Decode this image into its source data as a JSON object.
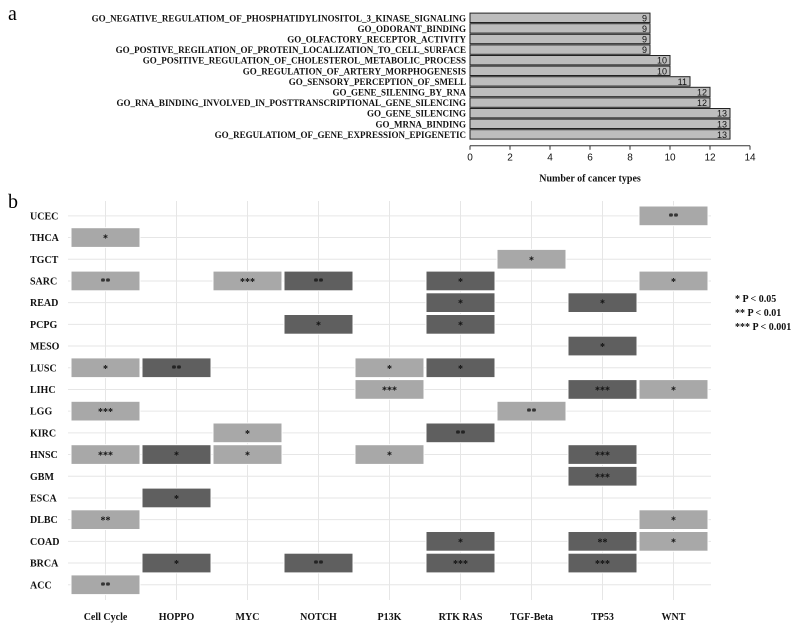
{
  "panel_a_label": "a",
  "panel_b_label": "b",
  "chart_data": [
    {
      "type": "bar",
      "orientation": "horizontal",
      "panel": "a",
      "categories": [
        "GO_NEGATIVE_REGULATIOM_OF_PHOSPHATIDYLINOSITOL_3_KINASE_SIGNALING",
        "GO_ODORANT_BINDING",
        "GO_OLFACTORY_RECEPTOR_ACTIVITY",
        "GO_POSTIVE_REGILATION_OF_PROTEIN_LOCALIZATION_TO_CELL_SURFACE",
        "GO_POSITIVE_REGULATION_OF_CHOLESTEROL_METABOLIC_PROCESS",
        "GO_REGULATION_OF_ARTERY_MORPHOGENESIS",
        "GO_SENSORY_PERCEPTION_OF_SMELL",
        "GO_GENE_SILENING_BY_RNA",
        "GO_RNA_BINDING_INVOLVED_IN_POSTTRANSCRIPTIONAL_GENE_SILENCING",
        "GO_GENE_SILENCING",
        "GO_MRNA_BINDING",
        "GO_REGULATIOM_OF_GENE_EXPRESSION_EPIGENETIC"
      ],
      "values": [
        9,
        9,
        9,
        9,
        10,
        10,
        11,
        12,
        12,
        13,
        13,
        13
      ],
      "value_labels": [
        "9",
        "9",
        "9",
        "9",
        "10",
        "10",
        "11",
        "12",
        "12",
        "13",
        "13",
        "13"
      ],
      "xlabel": "Number of cancer types",
      "xlim": [
        0,
        14
      ],
      "xticks": [
        "0",
        "2",
        "4",
        "6",
        "8",
        "10",
        "12",
        "14"
      ],
      "bar_color": "#bdbdbd"
    },
    {
      "type": "heatmap",
      "panel": "b",
      "columns": [
        "Cell Cycle",
        "HOPPO",
        "MYC",
        "NOTCH",
        "P13K",
        "RTK RAS",
        "TGF-Beta",
        "TP53",
        "WNT"
      ],
      "rows": [
        "UCEC",
        "THCA",
        "TGCT",
        "SARC",
        "READ",
        "PCPG",
        "MESO",
        "LUSC",
        "LIHC",
        "LGG",
        "KIRC",
        "HNSC",
        "GBM",
        "ESCA",
        "DLBC",
        "COAD",
        "BRCA",
        "ACC"
      ],
      "cells": [
        {
          "row": "UCEC",
          "col": "WNT",
          "sig": "**",
          "shade": "light"
        },
        {
          "row": "THCA",
          "col": "Cell Cycle",
          "sig": "*",
          "shade": "light"
        },
        {
          "row": "TGCT",
          "col": "TGF-Beta",
          "sig": "*",
          "shade": "light"
        },
        {
          "row": "SARC",
          "col": "Cell Cycle",
          "sig": "**",
          "shade": "light"
        },
        {
          "row": "SARC",
          "col": "MYC",
          "sig": "***",
          "shade": "light"
        },
        {
          "row": "SARC",
          "col": "NOTCH",
          "sig": "**",
          "shade": "dark"
        },
        {
          "row": "SARC",
          "col": "RTK RAS",
          "sig": "*",
          "shade": "dark"
        },
        {
          "row": "SARC",
          "col": "WNT",
          "sig": "*",
          "shade": "light"
        },
        {
          "row": "READ",
          "col": "RTK RAS",
          "sig": "*",
          "shade": "dark"
        },
        {
          "row": "READ",
          "col": "TP53",
          "sig": "*",
          "shade": "dark"
        },
        {
          "row": "PCPG",
          "col": "NOTCH",
          "sig": "*",
          "shade": "dark"
        },
        {
          "row": "PCPG",
          "col": "RTK RAS",
          "sig": "*",
          "shade": "dark"
        },
        {
          "row": "MESO",
          "col": "TP53",
          "sig": "*",
          "shade": "dark"
        },
        {
          "row": "LUSC",
          "col": "Cell Cycle",
          "sig": "*",
          "shade": "light"
        },
        {
          "row": "LUSC",
          "col": "HOPPO",
          "sig": "**",
          "shade": "dark"
        },
        {
          "row": "LUSC",
          "col": "P13K",
          "sig": "*",
          "shade": "light"
        },
        {
          "row": "LUSC",
          "col": "RTK RAS",
          "sig": "*",
          "shade": "dark"
        },
        {
          "row": "LIHC",
          "col": "P13K",
          "sig": "***",
          "shade": "light"
        },
        {
          "row": "LIHC",
          "col": "TP53",
          "sig": "***",
          "shade": "dark"
        },
        {
          "row": "LIHC",
          "col": "WNT",
          "sig": "*",
          "shade": "light"
        },
        {
          "row": "LGG",
          "col": "Cell Cycle",
          "sig": "***",
          "shade": "light"
        },
        {
          "row": "LGG",
          "col": "TGF-Beta",
          "sig": "**",
          "shade": "light"
        },
        {
          "row": "KIRC",
          "col": "MYC",
          "sig": "*",
          "shade": "light"
        },
        {
          "row": "KIRC",
          "col": "RTK RAS",
          "sig": "**",
          "shade": "dark"
        },
        {
          "row": "HNSC",
          "col": "Cell Cycle",
          "sig": "***",
          "shade": "light"
        },
        {
          "row": "HNSC",
          "col": "HOPPO",
          "sig": "*",
          "shade": "dark"
        },
        {
          "row": "HNSC",
          "col": "MYC",
          "sig": "*",
          "shade": "light"
        },
        {
          "row": "HNSC",
          "col": "P13K",
          "sig": "*",
          "shade": "light"
        },
        {
          "row": "HNSC",
          "col": "TP53",
          "sig": "***",
          "shade": "dark"
        },
        {
          "row": "GBM",
          "col": "TP53",
          "sig": "***",
          "shade": "dark"
        },
        {
          "row": "ESCA",
          "col": "HOPPO",
          "sig": "*",
          "shade": "dark"
        },
        {
          "row": "DLBC",
          "col": "Cell Cycle",
          "sig": "**",
          "shade": "light"
        },
        {
          "row": "DLBC",
          "col": "WNT",
          "sig": "*",
          "shade": "light"
        },
        {
          "row": "COAD",
          "col": "RTK RAS",
          "sig": "*",
          "shade": "dark"
        },
        {
          "row": "COAD",
          "col": "TP53",
          "sig": "**",
          "shade": "dark"
        },
        {
          "row": "COAD",
          "col": "WNT",
          "sig": "*",
          "shade": "light"
        },
        {
          "row": "BRCA",
          "col": "HOPPO",
          "sig": "*",
          "shade": "dark"
        },
        {
          "row": "BRCA",
          "col": "NOTCH",
          "sig": "**",
          "shade": "dark"
        },
        {
          "row": "BRCA",
          "col": "RTK RAS",
          "sig": "***",
          "shade": "dark"
        },
        {
          "row": "BRCA",
          "col": "TP53",
          "sig": "***",
          "shade": "dark"
        },
        {
          "row": "ACC",
          "col": "Cell Cycle",
          "sig": "**",
          "shade": "light"
        }
      ],
      "legend": [
        "* P < 0.05",
        "** P < 0.01",
        "*** P < 0.001"
      ],
      "colors": {
        "light": "#a8a8a8",
        "dark": "#5f5f5f",
        "grid": "#e6e6e6"
      }
    }
  ]
}
